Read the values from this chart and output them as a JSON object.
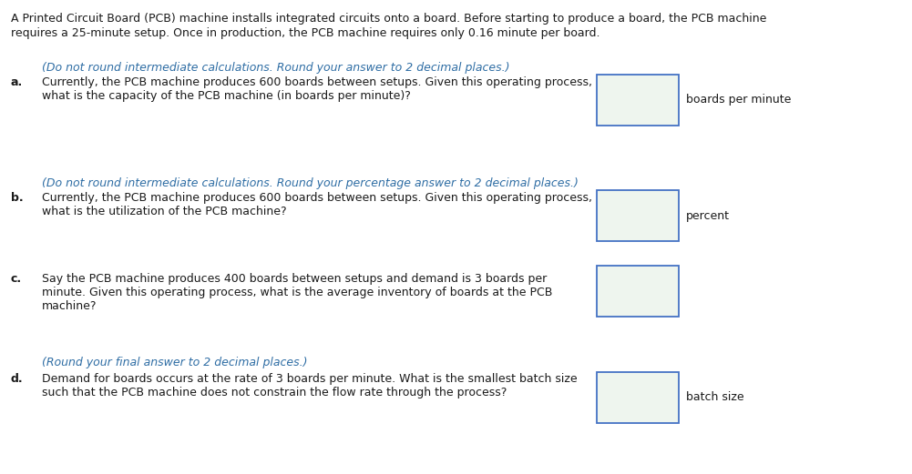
{
  "background_color": "#ffffff",
  "text_color": "#1a1a1a",
  "hint_color": "#2e6da4",
  "box_edge_color": "#4472c4",
  "box_face_color": "#eef5ee",
  "font_size": 9.0,
  "hint_font_size": 9.0,
  "intro_line1": "A Printed Circuit Board (PCB) machine installs integrated circuits onto a board. Before starting to produce a board, the PCB machine",
  "intro_line2": "requires a 25-minute setup. Once in production, the PCB machine requires only 0.16 minute per board.",
  "sections": [
    {
      "label": "a.",
      "hint": "(Do not round intermediate calculations. Round your answer to 2 decimal places.)",
      "q_lines": [
        "Currently, the PCB machine produces 600 boards between setups. Given this operating process,",
        "what is the capacity of the PCB machine (in boards per minute)?"
      ],
      "unit": "boards per minute"
    },
    {
      "label": "b.",
      "hint": "(Do not round intermediate calculations. Round your percentage answer to 2 decimal places.)",
      "q_lines": [
        "Currently, the PCB machine produces 600 boards between setups. Given this operating process,",
        "what is the utilization of the PCB machine?"
      ],
      "unit": "percent"
    },
    {
      "label": "c.",
      "hint": null,
      "q_lines": [
        "Say the PCB machine produces 400 boards between setups and demand is 3 boards per",
        "minute. Given this operating process, what is the average inventory of boards at the PCB",
        "machine?"
      ],
      "unit": null
    },
    {
      "label": "d.",
      "hint": "(Round your final answer to 2 decimal places.)",
      "q_lines": [
        "Demand for boards occurs at the rate of 3 boards per minute. What is the smallest batch size",
        "such that the PCB machine does not constrain the flow rate through the process?"
      ],
      "unit": "batch size"
    }
  ]
}
